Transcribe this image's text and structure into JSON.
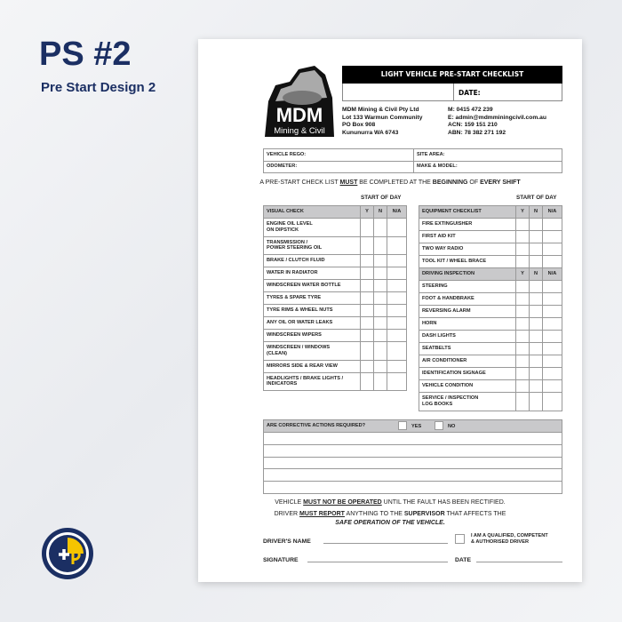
{
  "product": {
    "title": "PS #2",
    "subtitle": "Pre Start Design 2",
    "colors": {
      "navy": "#1b2f63",
      "yellow": "#f5c400"
    }
  },
  "logo": {
    "text_main": "MDM",
    "text_sub": "Mining & Civil"
  },
  "form": {
    "title": "LIGHT VEHICLE PRE-START CHECKLIST",
    "date_label": "DATE:",
    "company": [
      "MDM Mining & Civil Pty Ltd",
      "Lot 133 Warmun Community",
      "PO Box 908",
      "Kununurra WA 6743"
    ],
    "contact": [
      "M: 0415 472 239",
      "E: admin@mdmminingcivil.com.au",
      "ACN: 159 151 210",
      "ABN: 78 382 271 192"
    ],
    "vehicle_fields": {
      "rego": "VEHICLE REGO:",
      "site": "SITE AREA:",
      "odometer": "ODOMETER:",
      "make": "MAKE & MODEL:"
    },
    "statement": {
      "a": "A PRE-START CHECK LIST ",
      "b": "MUST",
      "c": " BE COMPLETED AT THE ",
      "d": "BEGINNING",
      "e": " OF ",
      "f": "EVERY SHIFT"
    },
    "start_of_day": "START OF DAY",
    "cols": {
      "y": "Y",
      "n": "N",
      "na": "N/A"
    },
    "visual_check": {
      "header": "VISUAL CHECK",
      "items": [
        "ENGINE OIL LEVEL\nON DIPSTICK",
        "TRANSMISSION /\nPOWER STEERING OIL",
        "BRAKE / CLUTCH FLUID",
        "WATER IN RADIATOR",
        "WINDSCREEN WATER BOTTLE",
        "TYRES & SPARE TYRE",
        "TYRE RIMS & WHEEL NUTS",
        "ANY OIL OR WATER LEAKS",
        "WINDSCREEN WIPERS",
        "WINDSCREEN / WINDOWS\n(CLEAN)",
        "MIRRORS SIDE & REAR VIEW",
        "HEADLIGHTS / BRAKE LIGHTS /\nINDICATORS"
      ]
    },
    "equipment": {
      "header": "EQUIPMENT CHECKLIST",
      "items": [
        "FIRE EXTINGUISHER",
        "FIRST AID KIT",
        "TWO WAY RADIO",
        "TOOL KIT / WHEEL BRACE"
      ]
    },
    "driving": {
      "header": "DRIVING INSPECTION",
      "items": [
        "STEERING",
        "FOOT & HANDBRAKE",
        "REVERSING ALARM",
        "HORN",
        "DASH LIGHTS",
        "SEATBELTS",
        "AIR CONDITIONER",
        "IDENTIFICATION SIGNAGE",
        "VEHICLE CONDITION",
        "SERVICE / INSPECTION\nLOG BOOKS"
      ]
    },
    "corrective": {
      "question": "ARE CORRECTIVE ACTIONS REQUIRED?",
      "yes": "YES",
      "no": "NO"
    },
    "warning1": {
      "a": "VEHICLE ",
      "b": "MUST NOT BE OPERATED",
      "c": " UNTIL THE FAULT HAS BEEN RECTIFIED."
    },
    "warning2": {
      "a": "DRIVER ",
      "b": "MUST REPORT",
      "c": " ANYTHING TO THE ",
      "d": "SUPERVISOR",
      "e": " THAT AFFECTS THE",
      "f": "SAFE OPERATION OF THE VEHICLE."
    },
    "drivers_name": "DRIVER'S NAME",
    "qualified": "I AM A QUALIFIED, COMPETENT\n& AUTHORISED DRIVER",
    "signature": "SIGNATURE",
    "date": "DATE"
  }
}
